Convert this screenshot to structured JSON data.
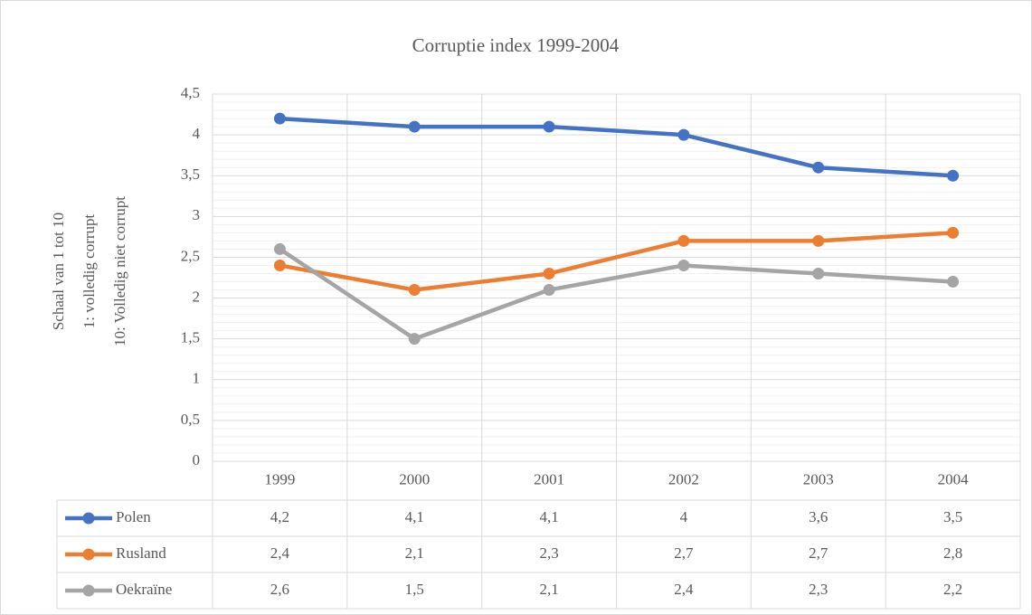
{
  "chart_data": {
    "type": "line",
    "title": "Corruptie index 1999-2004",
    "y_label": [
      "Schaal van 1 tot 10",
      "1: volledig corrupt",
      "10: Volledig niet corrupt"
    ],
    "categories": [
      "1999",
      "2000",
      "2001",
      "2002",
      "2003",
      "2004"
    ],
    "series": [
      {
        "name": "Polen",
        "color": "#4472c4",
        "values": [
          4.2,
          4.1,
          4.1,
          4,
          3.6,
          3.5
        ],
        "value_labels": [
          "4,2",
          "4,1",
          "4,1",
          "4",
          "3,6",
          "3,5"
        ]
      },
      {
        "name": "Rusland",
        "color": "#ed7d31",
        "values": [
          2.4,
          2.1,
          2.3,
          2.7,
          2.7,
          2.8
        ],
        "value_labels": [
          "2,4",
          "2,1",
          "2,3",
          "2,7",
          "2,7",
          "2,8"
        ]
      },
      {
        "name": "Oekraïne",
        "color": "#a5a5a5",
        "values": [
          2.6,
          1.5,
          2.1,
          2.4,
          2.3,
          2.2
        ],
        "value_labels": [
          "2,6",
          "1,5",
          "2,1",
          "2,4",
          "2,3",
          "2,2"
        ]
      }
    ],
    "ylim": [
      0,
      4.5
    ],
    "yticks": [
      0,
      {
        "value": 0.5,
        "label": "0,5"
      },
      1,
      {
        "value": 1.5,
        "label": "1,5"
      },
      2,
      {
        "value": 2.5,
        "label": "2,5"
      },
      3,
      {
        "value": 3.5,
        "label": "3,5"
      },
      4,
      {
        "value": 4.5,
        "label": "4,5"
      }
    ],
    "grid": true,
    "minor_divisions": 5
  }
}
